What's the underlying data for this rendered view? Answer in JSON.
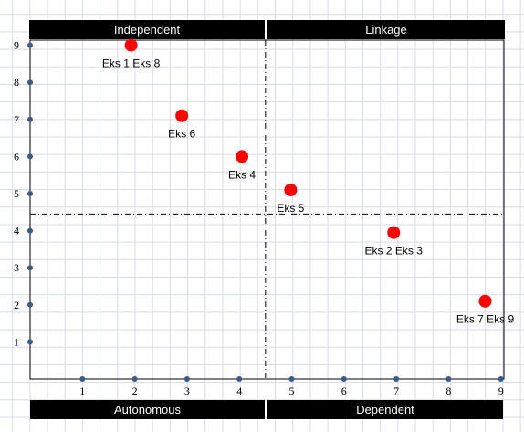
{
  "quadrant_labels": {
    "top_left": "Independent",
    "top_right": "Linkage",
    "bottom_left": "Autonomous",
    "bottom_right": "Dependent"
  },
  "colors": {
    "point": "#ff0000",
    "tick_marker": "#3c5a82",
    "axis": "#000000",
    "divider": "#000000",
    "label_bg": "#000000",
    "label_text": "#ffffff"
  },
  "chart_data": {
    "type": "scatter",
    "title": "",
    "xlabel": "",
    "ylabel": "",
    "xlim": [
      0,
      9
    ],
    "ylim": [
      0,
      9
    ],
    "x_ticks": [
      1,
      2,
      3,
      4,
      5,
      6,
      7,
      8,
      9
    ],
    "y_ticks": [
      1,
      2,
      3,
      4,
      5,
      6,
      7,
      8,
      9
    ],
    "grid": true,
    "divider_lines": {
      "x": 4.5,
      "y": 4.45
    },
    "points": [
      {
        "label": "Eks 1,Eks 8",
        "x": 1.93,
        "y": 9.0
      },
      {
        "label": "Eks 6",
        "x": 2.9,
        "y": 7.1
      },
      {
        "label": "Eks 4",
        "x": 4.05,
        "y": 6.0
      },
      {
        "label": "Eks 5",
        "x": 4.98,
        "y": 5.1
      },
      {
        "label": "Eks 2 Eks 3",
        "x": 6.95,
        "y": 3.95
      },
      {
        "label": "Eks 7 Eks 9",
        "x": 8.7,
        "y": 2.1
      }
    ]
  }
}
